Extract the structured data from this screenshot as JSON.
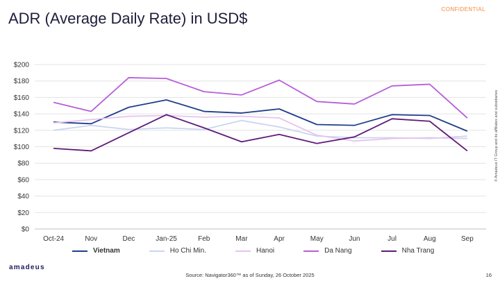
{
  "header": {
    "confidential": "CONFIDENTIAL",
    "title": "ADR (Average Daily Rate) in USD$"
  },
  "chart_data": {
    "type": "line",
    "categories": [
      "Oct-24",
      "Nov",
      "Dec",
      "Jan-25",
      "Feb",
      "Mar",
      "Apr",
      "May",
      "Jun",
      "Jul",
      "Aug",
      "Sep"
    ],
    "y_ticks": [
      "$200",
      "$180",
      "$160",
      "$140",
      "$120",
      "$100",
      "$80",
      "$60",
      "$40",
      "$20",
      "$0"
    ],
    "ylim": [
      0,
      200
    ],
    "grid": true,
    "legend_position": "bottom",
    "series": [
      {
        "name": "Vietnam",
        "color": "#1f3e8a",
        "values": [
          130,
          128,
          148,
          157,
          143,
          141,
          146,
          127,
          126,
          139,
          138,
          119
        ]
      },
      {
        "name": "Ho Chi Min.",
        "color": "#c9d6f0",
        "values": [
          120,
          126,
          121,
          123,
          121,
          132,
          124,
          113,
          111,
          111,
          110,
          113
        ]
      },
      {
        "name": "Hanoi",
        "color": "#e6c3ee",
        "values": [
          129,
          133,
          137,
          138,
          136,
          137,
          135,
          114,
          107,
          110,
          111,
          110
        ]
      },
      {
        "name": "Da Nang",
        "color": "#b65fd8",
        "values": [
          154,
          143,
          184,
          183,
          167,
          163,
          181,
          155,
          152,
          174,
          176,
          135
        ]
      },
      {
        "name": "Nha Trang",
        "color": "#5e1a78",
        "values": [
          98,
          95,
          117,
          139,
          123,
          106,
          115,
          104,
          112,
          134,
          131,
          95
        ]
      }
    ]
  },
  "footer": {
    "side_note": "© Amadeus IT Group and its affiliates and subsidiaries",
    "brand": "amadeus",
    "source": "Source: Navigator360™ as of Sunday, 26 October 2025",
    "page_number": "16"
  }
}
